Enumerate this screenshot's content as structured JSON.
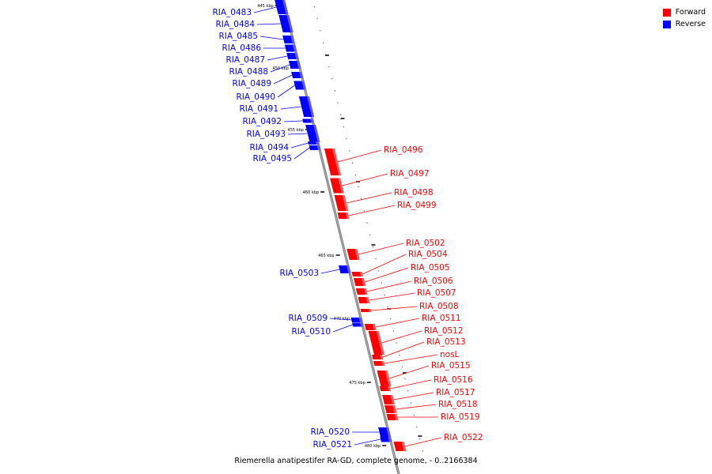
{
  "colors": {
    "forward": "#ff0000",
    "reverse": "#0000ff",
    "backbone": "#808080"
  },
  "legend": [
    {
      "label": "Forward",
      "color": "#ff0000"
    },
    {
      "label": "Reverse",
      "color": "#0000ff"
    }
  ],
  "caption": "Riemerella anatipestifer RA-GD, complete genome. - 0..2166384",
  "scale_ticks": [
    "445 kbp",
    "450 kbp",
    "455 kbp",
    "460 kbp",
    "465 kbp",
    "470 kbp",
    "475 kbp",
    "480 kbp"
  ],
  "genes": [
    {
      "name": "RIA_0483",
      "strand": "reverse"
    },
    {
      "name": "RIA_0484",
      "strand": "reverse"
    },
    {
      "name": "RIA_0485",
      "strand": "reverse"
    },
    {
      "name": "RIA_0486",
      "strand": "reverse"
    },
    {
      "name": "RIA_0487",
      "strand": "reverse"
    },
    {
      "name": "RIA_0488",
      "strand": "reverse"
    },
    {
      "name": "RIA_0489",
      "strand": "reverse"
    },
    {
      "name": "RIA_0490",
      "strand": "reverse"
    },
    {
      "name": "RIA_0491",
      "strand": "reverse"
    },
    {
      "name": "RIA_0492",
      "strand": "reverse"
    },
    {
      "name": "RIA_0493",
      "strand": "reverse"
    },
    {
      "name": "RIA_0494",
      "strand": "reverse"
    },
    {
      "name": "RIA_0495",
      "strand": "reverse"
    },
    {
      "name": "RIA_0496",
      "strand": "forward"
    },
    {
      "name": "RIA_0497",
      "strand": "forward"
    },
    {
      "name": "RIA_0498",
      "strand": "forward"
    },
    {
      "name": "RIA_0499",
      "strand": "forward"
    },
    {
      "name": "RIA_0502",
      "strand": "forward"
    },
    {
      "name": "RIA_0503",
      "strand": "reverse"
    },
    {
      "name": "RIA_0504",
      "strand": "forward"
    },
    {
      "name": "RIA_0505",
      "strand": "forward"
    },
    {
      "name": "RIA_0506",
      "strand": "forward"
    },
    {
      "name": "RIA_0507",
      "strand": "forward"
    },
    {
      "name": "RIA_0508",
      "strand": "forward"
    },
    {
      "name": "RIA_0509",
      "strand": "reverse"
    },
    {
      "name": "RIA_0510",
      "strand": "reverse"
    },
    {
      "name": "RIA_0511",
      "strand": "forward"
    },
    {
      "name": "RIA_0512",
      "strand": "forward"
    },
    {
      "name": "RIA_0513",
      "strand": "forward"
    },
    {
      "name": "nosL",
      "strand": "forward"
    },
    {
      "name": "RIA_0515",
      "strand": "forward"
    },
    {
      "name": "RIA_0516",
      "strand": "forward"
    },
    {
      "name": "RIA_0517",
      "strand": "forward"
    },
    {
      "name": "RIA_0518",
      "strand": "forward"
    },
    {
      "name": "RIA_0519",
      "strand": "forward"
    },
    {
      "name": "RIA_0520",
      "strand": "reverse"
    },
    {
      "name": "RIA_0521",
      "strand": "reverse"
    },
    {
      "name": "RIA_0522",
      "strand": "forward"
    }
  ]
}
